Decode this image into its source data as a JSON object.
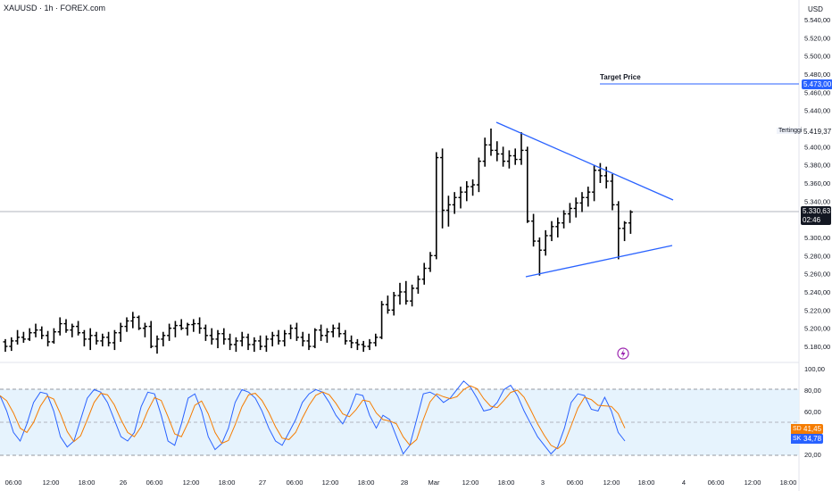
{
  "header": {
    "title": "XAUUSD · 1h · FOREX.com",
    "currency": "USD"
  },
  "price_axis": {
    "ticks": [
      "5.540,00",
      "5.520,00",
      "5.500,00",
      "5.480,00",
      "5.460,00",
      "5.440,00",
      "5.420,00",
      "5.400,00",
      "5.380,00",
      "5.360,00",
      "5.340,00",
      "5.320,00",
      "5.300,00",
      "5.280,00",
      "5.260,00",
      "5.240,00",
      "5.220,00",
      "5.200,00",
      "5.180,00"
    ],
    "current_price": "5.330,63",
    "countdown": "02:46",
    "target_price_tag": "5.473,00",
    "high_label": "Tertinggi",
    "high_price": "5.419,37"
  },
  "annotations": {
    "target_label": "Target Price"
  },
  "stoch": {
    "ticks": [
      "100,00",
      "80,00",
      "60,00",
      "20,00"
    ],
    "sd_label": "SD",
    "sd_value": "41,45",
    "sk_label": "SK",
    "sk_value": "34,78"
  },
  "time_axis": [
    "06:00",
    "12:00",
    "18:00",
    "26",
    "06:00",
    "12:00",
    "18:00",
    "27",
    "06:00",
    "12:00",
    "18:00",
    "28",
    "Mar",
    "12:00",
    "18:00",
    "3",
    "06:00",
    "12:00",
    "18:00",
    "4",
    "06:00",
    "12:00",
    "18:00"
  ],
  "colors": {
    "trendline": "#2962ff",
    "target_line": "#2962ff",
    "sd_line": "#f57c00",
    "sk_line": "#2962ff",
    "band_fill": "#e3f2fd",
    "current_price_bg": "#131722",
    "lightning_icon": "#9c27b0"
  },
  "chart_data": {
    "type": "ohlc",
    "ylabel": "USD",
    "ylim": [
      5170,
      5550
    ],
    "bars": [
      [
        5185,
        5188,
        5174,
        5180
      ],
      [
        5180,
        5190,
        5175,
        5186
      ],
      [
        5186,
        5198,
        5182,
        5190
      ],
      [
        5190,
        5196,
        5184,
        5188
      ],
      [
        5188,
        5200,
        5186,
        5195
      ],
      [
        5195,
        5205,
        5190,
        5198
      ],
      [
        5198,
        5202,
        5188,
        5192
      ],
      [
        5192,
        5197,
        5180,
        5185
      ],
      [
        5185,
        5200,
        5183,
        5196
      ],
      [
        5196,
        5212,
        5192,
        5205
      ],
      [
        5205,
        5210,
        5195,
        5198
      ],
      [
        5198,
        5205,
        5190,
        5202
      ],
      [
        5202,
        5208,
        5192,
        5195
      ],
      [
        5195,
        5198,
        5180,
        5188
      ],
      [
        5188,
        5200,
        5176,
        5192
      ],
      [
        5192,
        5196,
        5182,
        5186
      ],
      [
        5186,
        5194,
        5180,
        5190
      ],
      [
        5190,
        5196,
        5180,
        5184
      ],
      [
        5184,
        5198,
        5176,
        5195
      ],
      [
        5195,
        5206,
        5185,
        5202
      ],
      [
        5202,
        5212,
        5196,
        5208
      ],
      [
        5208,
        5218,
        5200,
        5212
      ],
      [
        5212,
        5214,
        5198,
        5200
      ],
      [
        5200,
        5206,
        5190,
        5202
      ],
      [
        5202,
        5208,
        5178,
        5180
      ],
      [
        5180,
        5192,
        5172,
        5188
      ],
      [
        5188,
        5196,
        5180,
        5192
      ],
      [
        5192,
        5205,
        5186,
        5200
      ],
      [
        5200,
        5208,
        5190,
        5203
      ],
      [
        5203,
        5210,
        5198,
        5200
      ],
      [
        5200,
        5206,
        5192,
        5204
      ],
      [
        5204,
        5210,
        5196,
        5205
      ],
      [
        5205,
        5212,
        5194,
        5200
      ],
      [
        5200,
        5204,
        5186,
        5192
      ],
      [
        5192,
        5200,
        5182,
        5188
      ],
      [
        5188,
        5198,
        5178,
        5194
      ],
      [
        5194,
        5200,
        5182,
        5188
      ],
      [
        5188,
        5194,
        5176,
        5182
      ],
      [
        5182,
        5190,
        5174,
        5186
      ],
      [
        5186,
        5196,
        5180,
        5190
      ],
      [
        5190,
        5194,
        5176,
        5182
      ],
      [
        5182,
        5190,
        5174,
        5186
      ],
      [
        5186,
        5192,
        5176,
        5180
      ],
      [
        5180,
        5192,
        5174,
        5188
      ],
      [
        5188,
        5196,
        5180,
        5192
      ],
      [
        5192,
        5198,
        5182,
        5186
      ],
      [
        5186,
        5198,
        5180,
        5194
      ],
      [
        5194,
        5204,
        5188,
        5200
      ],
      [
        5200,
        5206,
        5186,
        5190
      ],
      [
        5190,
        5196,
        5180,
        5186
      ],
      [
        5186,
        5194,
        5176,
        5180
      ],
      [
        5180,
        5200,
        5178,
        5198
      ],
      [
        5198,
        5204,
        5186,
        5192
      ],
      [
        5192,
        5200,
        5184,
        5196
      ],
      [
        5196,
        5204,
        5190,
        5200
      ],
      [
        5200,
        5206,
        5190,
        5194
      ],
      [
        5194,
        5198,
        5182,
        5186
      ],
      [
        5186,
        5192,
        5178,
        5184
      ],
      [
        5184,
        5188,
        5176,
        5182
      ],
      [
        5182,
        5186,
        5174,
        5180
      ],
      [
        5180,
        5188,
        5176,
        5184
      ],
      [
        5184,
        5194,
        5180,
        5190
      ],
      [
        5190,
        5230,
        5188,
        5226
      ],
      [
        5226,
        5236,
        5216,
        5220
      ],
      [
        5220,
        5240,
        5214,
        5236
      ],
      [
        5236,
        5250,
        5226,
        5240
      ],
      [
        5240,
        5252,
        5226,
        5230
      ],
      [
        5230,
        5248,
        5224,
        5244
      ],
      [
        5244,
        5258,
        5238,
        5254
      ],
      [
        5254,
        5272,
        5248,
        5266
      ],
      [
        5266,
        5284,
        5262,
        5280
      ],
      [
        5280,
        5394,
        5276,
        5388
      ],
      [
        5388,
        5398,
        5310,
        5330
      ],
      [
        5330,
        5346,
        5312,
        5336
      ],
      [
        5336,
        5350,
        5326,
        5344
      ],
      [
        5344,
        5356,
        5332,
        5350
      ],
      [
        5350,
        5362,
        5340,
        5356
      ],
      [
        5356,
        5364,
        5346,
        5358
      ],
      [
        5358,
        5388,
        5350,
        5384
      ],
      [
        5384,
        5410,
        5378,
        5402
      ],
      [
        5402,
        5420,
        5390,
        5396
      ],
      [
        5396,
        5406,
        5384,
        5392
      ],
      [
        5392,
        5400,
        5378,
        5384
      ],
      [
        5384,
        5396,
        5376,
        5390
      ],
      [
        5390,
        5398,
        5380,
        5386
      ],
      [
        5386,
        5416,
        5380,
        5396
      ],
      [
        5396,
        5400,
        5316,
        5318
      ],
      [
        5318,
        5326,
        5290,
        5296
      ],
      [
        5296,
        5300,
        5258,
        5286
      ],
      [
        5286,
        5308,
        5280,
        5302
      ],
      [
        5302,
        5318,
        5296,
        5312
      ],
      [
        5312,
        5322,
        5300,
        5316
      ],
      [
        5316,
        5330,
        5310,
        5326
      ],
      [
        5326,
        5338,
        5316,
        5332
      ],
      [
        5332,
        5344,
        5322,
        5338
      ],
      [
        5338,
        5350,
        5328,
        5344
      ],
      [
        5344,
        5356,
        5334,
        5350
      ],
      [
        5350,
        5380,
        5340,
        5374
      ],
      [
        5374,
        5382,
        5360,
        5368
      ],
      [
        5368,
        5378,
        5354,
        5362
      ],
      [
        5362,
        5370,
        5330,
        5336
      ],
      [
        5336,
        5340,
        5276,
        5310
      ],
      [
        5310,
        5318,
        5296,
        5316
      ],
      [
        5316,
        5330,
        5304,
        5328
      ]
    ],
    "target_price": 5473,
    "high": 5419.37,
    "current": 5330.63
  }
}
